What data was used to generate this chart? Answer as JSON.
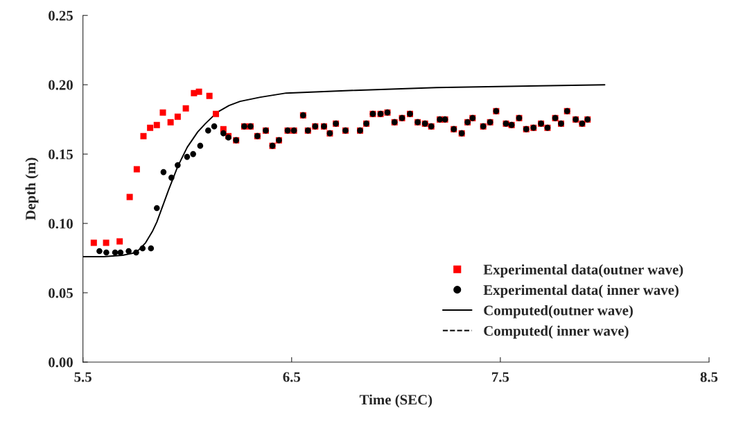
{
  "chart_data": {
    "type": "scatter",
    "xlabel": "Time (SEC)",
    "ylabel": "Depth (m)",
    "xlim": [
      5.5,
      8.5
    ],
    "xticks": [
      5.5,
      6.5,
      7.5,
      8.5
    ],
    "ylim": [
      0,
      0.25
    ],
    "yticks": [
      {
        "value": 0,
        "label": "0.00"
      },
      {
        "value": 0.05,
        "label": "0.05"
      },
      {
        "value": 0.1,
        "label": "0.10"
      },
      {
        "value": 0.15,
        "label": "0.15"
      },
      {
        "value": 0.2,
        "label": "0.20"
      },
      {
        "value": 0.25,
        "label": "0.25"
      }
    ],
    "grid": false,
    "legend": "bottom right",
    "series": [
      {
        "name": "Experimental data(outner wave)",
        "marker": "square",
        "color": "#ff0000",
        "x": [
          5.552,
          5.611,
          5.676,
          5.724,
          5.758,
          5.79,
          5.822,
          5.854,
          5.883,
          5.92,
          5.954,
          5.993,
          6.032,
          6.056,
          6.106,
          6.137,
          6.173,
          6.197,
          6.234,
          6.273,
          6.303,
          6.336,
          6.376,
          6.408,
          6.439,
          6.481,
          6.511,
          6.555,
          6.578,
          6.613,
          6.655,
          6.683,
          6.712,
          6.758,
          6.828,
          6.858,
          6.889,
          6.926,
          6.959,
          6.993,
          7.029,
          7.067,
          7.104,
          7.139,
          7.169,
          7.21,
          7.235,
          7.277,
          7.315,
          7.343,
          7.367,
          7.418,
          7.451,
          7.48,
          7.527,
          7.554,
          7.59,
          7.624,
          7.659,
          7.695,
          7.726,
          7.763,
          7.791,
          7.82,
          7.861,
          7.892,
          7.918
        ],
        "values": [
          0.086,
          0.086,
          0.087,
          0.119,
          0.139,
          0.163,
          0.169,
          0.171,
          0.18,
          0.173,
          0.177,
          0.183,
          0.194,
          0.195,
          0.192,
          0.179,
          0.168,
          0.163,
          0.16,
          0.17,
          0.17,
          0.163,
          0.167,
          0.156,
          0.16,
          0.167,
          0.167,
          0.178,
          0.167,
          0.17,
          0.17,
          0.165,
          0.172,
          0.167,
          0.167,
          0.172,
          0.179,
          0.179,
          0.18,
          0.173,
          0.176,
          0.179,
          0.173,
          0.172,
          0.17,
          0.175,
          0.175,
          0.168,
          0.165,
          0.173,
          0.176,
          0.17,
          0.173,
          0.181,
          0.172,
          0.171,
          0.176,
          0.168,
          0.169,
          0.172,
          0.169,
          0.176,
          0.172,
          0.181,
          0.175,
          0.172,
          0.175
        ]
      },
      {
        "name": "Experimental data( inner wave)",
        "marker": "circle",
        "color": "#000000",
        "x": [
          5.579,
          5.612,
          5.654,
          5.68,
          5.719,
          5.755,
          5.786,
          5.826,
          5.854,
          5.886,
          5.924,
          5.954,
          5.999,
          6.028,
          6.062,
          6.1,
          6.129,
          6.173,
          6.197,
          6.234,
          6.273,
          6.303,
          6.336,
          6.376,
          6.408,
          6.439,
          6.481,
          6.511,
          6.555,
          6.578,
          6.613,
          6.655,
          6.683,
          6.712,
          6.758,
          6.828,
          6.858,
          6.889,
          6.926,
          6.959,
          6.993,
          7.029,
          7.067,
          7.104,
          7.139,
          7.169,
          7.21,
          7.235,
          7.277,
          7.315,
          7.343,
          7.367,
          7.418,
          7.451,
          7.48,
          7.527,
          7.554,
          7.59,
          7.624,
          7.659,
          7.695,
          7.726,
          7.763,
          7.791,
          7.82,
          7.861,
          7.892,
          7.918
        ],
        "values": [
          0.08,
          0.079,
          0.079,
          0.079,
          0.08,
          0.079,
          0.082,
          0.082,
          0.111,
          0.137,
          0.133,
          0.142,
          0.148,
          0.15,
          0.156,
          0.167,
          0.17,
          0.165,
          0.162,
          0.16,
          0.17,
          0.17,
          0.163,
          0.167,
          0.156,
          0.16,
          0.167,
          0.167,
          0.178,
          0.167,
          0.17,
          0.17,
          0.165,
          0.172,
          0.167,
          0.167,
          0.172,
          0.179,
          0.179,
          0.18,
          0.173,
          0.176,
          0.179,
          0.173,
          0.172,
          0.17,
          0.175,
          0.175,
          0.168,
          0.165,
          0.173,
          0.176,
          0.17,
          0.173,
          0.181,
          0.172,
          0.171,
          0.176,
          0.168,
          0.169,
          0.172,
          0.169,
          0.176,
          0.172,
          0.181,
          0.175,
          0.172,
          0.175
        ]
      },
      {
        "name": "Computed(outner wave)",
        "type": "line",
        "line_style": "solid",
        "marker": "none",
        "color": "#000000",
        "x": [
          5.5,
          5.6,
          5.69,
          5.755,
          5.8,
          5.832,
          5.854,
          5.91,
          5.954,
          6.0,
          6.05,
          6.087,
          6.142,
          6.2,
          6.253,
          6.35,
          6.474,
          6.807,
          7.194,
          8.0
        ],
        "values": [
          0.076,
          0.076,
          0.077,
          0.079,
          0.086,
          0.094,
          0.101,
          0.124,
          0.141,
          0.155,
          0.166,
          0.172,
          0.18,
          0.185,
          0.188,
          0.191,
          0.194,
          0.196,
          0.198,
          0.2
        ]
      },
      {
        "name": "Computed( inner wave)",
        "type": "line",
        "line_style": "dashed",
        "marker": "none",
        "color": "#000000"
      }
    ]
  }
}
